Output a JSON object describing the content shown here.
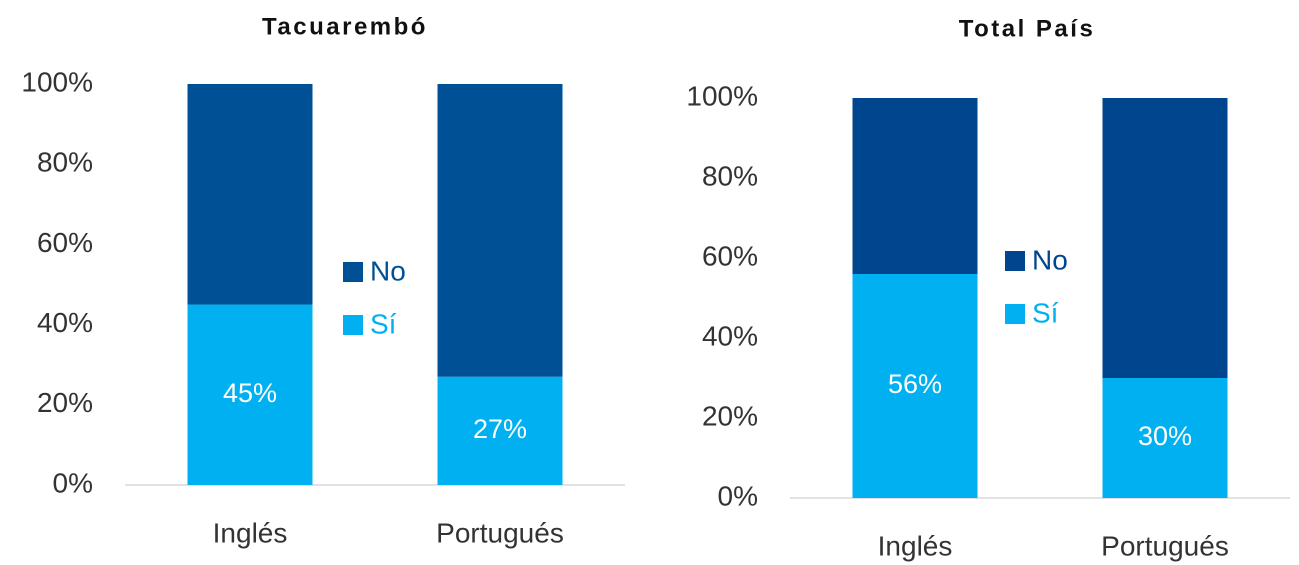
{
  "chart_data": [
    {
      "type": "stacked_bar",
      "title": "Tacuarembó",
      "categories": [
        "Inglés",
        "Portugués"
      ],
      "series": [
        {
          "name": "Sí",
          "color": "#00b0f0",
          "values": [
            45,
            27
          ],
          "value_labels": [
            "45%",
            "27%"
          ]
        },
        {
          "name": "No",
          "color": "#005095",
          "values": [
            55,
            73
          ]
        }
      ],
      "ylim": [
        0,
        100
      ],
      "yticks": [
        {
          "value": 0,
          "label": "0%"
        },
        {
          "value": 20,
          "label": "20%"
        },
        {
          "value": 40,
          "label": "40%"
        },
        {
          "value": 60,
          "label": "60%"
        },
        {
          "value": 80,
          "label": "80%"
        },
        {
          "value": 100,
          "label": "100%"
        }
      ],
      "legend": "center"
    },
    {
      "type": "stacked_bar",
      "title": "Total País",
      "categories": [
        "Inglés",
        "Portugués"
      ],
      "series": [
        {
          "name": "Sí",
          "color": "#00b0f0",
          "values": [
            56,
            30
          ],
          "value_labels": [
            "56%",
            "30%"
          ]
        },
        {
          "name": "No",
          "color": "#00468f",
          "values": [
            44,
            70
          ]
        }
      ],
      "ylim": [
        0,
        100
      ],
      "yticks": [
        {
          "value": 0,
          "label": "0%"
        },
        {
          "value": 20,
          "label": "20%"
        },
        {
          "value": 40,
          "label": "40%"
        },
        {
          "value": 60,
          "label": "60%"
        },
        {
          "value": 80,
          "label": "80%"
        },
        {
          "value": 100,
          "label": "100%"
        }
      ],
      "legend": "center"
    }
  ]
}
